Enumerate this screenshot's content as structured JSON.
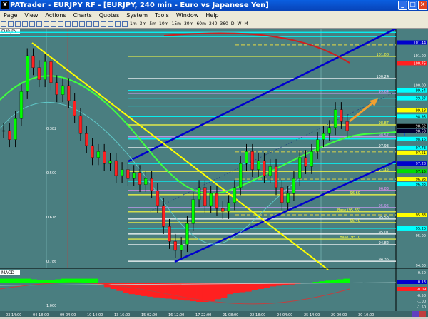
{
  "window": {
    "title": "PATrader - EURJPY RF - [EURJPY, 240 min - Euro vs Japanese Yen]",
    "minimize": "_",
    "maximize": "□",
    "close": "✕"
  },
  "menu": [
    "Page",
    "View",
    "Actions",
    "Charts",
    "Quotes",
    "System",
    "Tools",
    "Window",
    "Help"
  ],
  "toolbar": {
    "timeframes": [
      "1m",
      "3m",
      "5m",
      "10m",
      "15m",
      "30m",
      "60m",
      "240",
      "360",
      "D",
      "W",
      "M"
    ],
    "icons": [
      "zoom-in-icon",
      "zoom-out-icon",
      "chart-icon",
      "crosshair-icon",
      "cursor-icon",
      "line-tool-icon",
      "channel-icon",
      "trendline-icon",
      "fib-icon",
      "fib-ext-icon",
      "rect-icon",
      "rect2-icon",
      "gann-icon",
      "bars-icon",
      "flag-icon",
      "text-icon",
      "level-icon",
      "level2-icon"
    ]
  },
  "chart": {
    "symbol_label": "EURJPY",
    "panel_label": "MACD",
    "colors": {
      "bg": "#4a7e80",
      "up": "#00ff00",
      "down": "#ff2020",
      "trend": "#ffff00",
      "channel": "#0000cc",
      "ma": "#cc2020",
      "cyan": "#00ffff"
    },
    "price_axis": {
      "labels": [
        "101.00",
        "100.00",
        "95.00",
        "94.00"
      ],
      "min": 94.0,
      "max": 102.0
    },
    "closes": [
      98.5,
      98.2,
      98.9,
      99.8,
      101.0,
      100.6,
      100.2,
      100.8,
      100.1,
      99.7,
      100.0,
      99.5,
      99.0,
      98.4,
      98.0,
      97.6,
      97.8,
      97.4,
      97.5,
      97.0,
      97.2,
      96.9,
      97.1,
      96.7,
      96.9,
      96.5,
      96.0,
      95.3,
      94.8,
      94.5,
      94.7,
      95.4,
      96.2,
      96.6,
      96.0,
      96.4,
      95.9,
      95.8,
      96.1,
      96.6,
      97.4,
      97.8,
      97.2,
      97.5,
      97.0,
      97.3,
      96.6,
      96.1,
      96.4,
      96.9,
      97.6,
      97.3,
      97.8,
      98.2,
      98.4,
      98.6,
      99.2,
      98.8,
      98.5
    ],
    "levels": [
      {
        "p": 101.78,
        "c": "#00ffff",
        "label": ""
      },
      {
        "p": 101.64,
        "c": "#00ffff",
        "label": ""
      },
      {
        "p": 101.36,
        "c": "#c8c850",
        "label": "",
        "dash": true
      },
      {
        "p": 100.98,
        "c": "#ffff40",
        "label": "101.00"
      },
      {
        "p": 100.24,
        "c": "#ffffff",
        "label": "100.24"
      },
      {
        "p": 99.84,
        "c": "#00ffff",
        "label": ""
      },
      {
        "p": 99.74,
        "c": "#d8a0ff",
        "label": "99.64"
      },
      {
        "p": 99.58,
        "c": "#00ffff",
        "label": ""
      },
      {
        "p": 99.32,
        "c": "#00ffff",
        "label": ""
      },
      {
        "p": 98.97,
        "c": "#00ffff",
        "label": ""
      },
      {
        "p": 98.69,
        "c": "#ffff40",
        "label": "98.87"
      },
      {
        "p": 98.29,
        "c": "#d8a0ff",
        "label": "98.57"
      },
      {
        "p": 98.22,
        "c": "#00ffff",
        "label": ""
      },
      {
        "p": 97.93,
        "c": "#ffffff",
        "label": "97.93"
      },
      {
        "p": 97.79,
        "c": "#c8c850",
        "label": "",
        "dash": true
      },
      {
        "p": 97.4,
        "c": "#00ffff",
        "label": ""
      },
      {
        "p": 97.14,
        "c": "#ffff40",
        "label": "97.15"
      },
      {
        "p": 96.88,
        "c": "#c8c850",
        "label": "",
        "dash": true
      },
      {
        "p": 96.81,
        "c": "#00ffff",
        "label": ""
      },
      {
        "p": 96.5,
        "c": "#ff90ff",
        "label": "96.83"
      },
      {
        "p": 96.36,
        "c": "#ffff40",
        "label": "96.60"
      },
      {
        "p": 95.93,
        "c": "#d8a0ff",
        "label": "95.96"
      },
      {
        "p": 95.79,
        "c": "#ffff40",
        "label": "Base (95.86)"
      },
      {
        "p": 95.69,
        "c": "#c8c850",
        "label": "",
        "dash": true
      },
      {
        "p": 95.55,
        "c": "#ffffff",
        "label": "95.58"
      },
      {
        "p": 95.43,
        "c": "#ffff40",
        "label": "95.40"
      },
      {
        "p": 95.24,
        "c": "#00ffff",
        "label": ""
      },
      {
        "p": 95.05,
        "c": "#ffffff",
        "label": "95.01"
      },
      {
        "p": 94.88,
        "c": "#ffff40",
        "label": "Base (95.0)"
      },
      {
        "p": 94.69,
        "c": "#ffffff",
        "label": "94.82"
      },
      {
        "p": 94.14,
        "c": "#ffffff",
        "label": "94.36"
      }
    ],
    "badges": [
      {
        "p": 101.44,
        "t": "101.44",
        "bg": "#0000cc",
        "fg": "#fff"
      },
      {
        "p": 100.75,
        "t": "100.75",
        "bg": "#ff2020",
        "fg": "#fff"
      },
      {
        "p": 99.84,
        "t": "99.54",
        "bg": "#00ffff",
        "fg": "#000"
      },
      {
        "p": 99.58,
        "t": "99.37",
        "bg": "#00ffff",
        "fg": "#000"
      },
      {
        "p": 99.18,
        "t": "99.18",
        "bg": "#ffff00",
        "fg": "#000"
      },
      {
        "p": 98.97,
        "t": "98.95",
        "bg": "#00ffff",
        "fg": "#000"
      },
      {
        "p": 98.65,
        "t": "98.62",
        "bg": "#000000",
        "fg": "#fff"
      },
      {
        "p": 98.5,
        "t": "98.53",
        "bg": "#000033",
        "fg": "#fff"
      },
      {
        "p": 98.22,
        "t": "98.16",
        "bg": "#00ffff",
        "fg": "#000"
      },
      {
        "p": 97.93,
        "t": "97.73",
        "bg": "#00ffff",
        "fg": "#000"
      },
      {
        "p": 97.79,
        "t": "97.51",
        "bg": "#ffff00",
        "fg": "#000"
      },
      {
        "p": 97.4,
        "t": "97.28",
        "bg": "#0000cc",
        "fg": "#fff"
      },
      {
        "p": 97.14,
        "t": "97.15",
        "bg": "#00dd00",
        "fg": "#000"
      },
      {
        "p": 96.88,
        "t": "96.93",
        "bg": "#ffff00",
        "fg": "#000"
      },
      {
        "p": 96.81,
        "t": "96.83",
        "bg": "#00ffff",
        "fg": "#000"
      },
      {
        "p": 95.69,
        "t": "95.83",
        "bg": "#ffff00",
        "fg": "#000"
      },
      {
        "p": 95.24,
        "t": "95.20",
        "bg": "#00ffff",
        "fg": "#000"
      }
    ],
    "fib_labels": [
      "0.382",
      "0.500",
      "0.618",
      "0.786",
      "1.000"
    ],
    "macd": {
      "axis": [
        "0.50",
        "-0.50",
        "-1.00",
        "-1.50"
      ],
      "badges": [
        {
          "t": "0.13",
          "bg": "#0000cc"
        },
        {
          "t": "-0.09",
          "bg": "#ff2020"
        }
      ],
      "hist": [
        0.3,
        0.3,
        0.3,
        0.3,
        0.3,
        0.25,
        0.2,
        0.2,
        0.2,
        0.25,
        0.3,
        0.3,
        0.3,
        0.3,
        0.3,
        0.3,
        -0.2,
        -0.35,
        -0.5,
        -0.65,
        -0.8,
        -0.9,
        -1.0,
        -1.05,
        -1.1,
        -1.15,
        -1.2,
        -1.25,
        -1.3,
        -1.35,
        -1.4,
        -1.45,
        -1.5,
        -1.5,
        -1.45,
        -1.3,
        -1.2,
        -0.9,
        -0.8,
        -0.75,
        -0.7,
        -0.6,
        -0.5,
        -0.4,
        -0.3,
        -0.25,
        -0.2,
        -0.15,
        -0.1,
        -0.05,
        0.0,
        0.05,
        0.1,
        0.15,
        0.2,
        0.25,
        0.3
      ]
    },
    "time_axis": [
      "03 14:00",
      "04 18:00",
      "09 04:00",
      "10 14:00",
      "13 16:00",
      "15 02:00",
      "16 12:00",
      "17 22:00",
      "21 08:00",
      "22 18:00",
      "24 04:00",
      "25 14:00",
      "29 00:00",
      "30 10:00"
    ]
  }
}
